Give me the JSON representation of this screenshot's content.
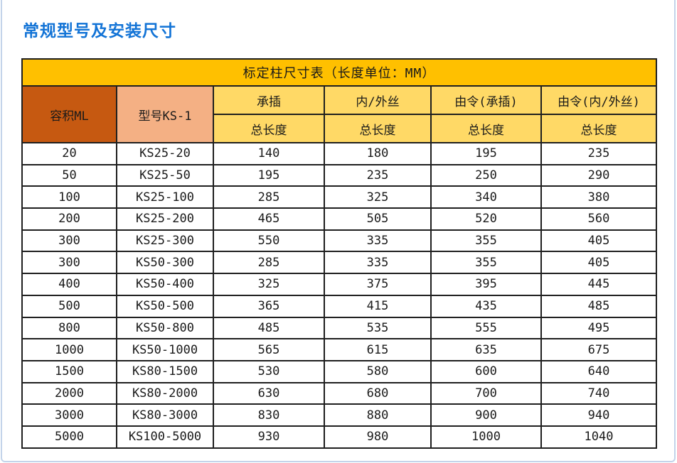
{
  "page": {
    "title": "常规型号及安装尺寸",
    "title_color": "#1273d6",
    "frame_color": "#c3d4ea"
  },
  "table": {
    "caption": "标定柱尺寸表（长度单位：MM）",
    "colors": {
      "caption_bg": "#ffc000",
      "volume_header_bg": "#c65911",
      "model_header_bg": "#f4b084",
      "group_header_bg": "#ffd966",
      "border": "#1f1f1f"
    },
    "header": {
      "volume": "容积ML",
      "model": "型号KS-1",
      "groups": [
        "承插",
        "内/外丝",
        "由令(承插)",
        "由令(内/外丝)"
      ],
      "sub_label": "总长度"
    },
    "rows": [
      {
        "volume": "20",
        "model": "KS25-20",
        "values": [
          "140",
          "180",
          "195",
          "235"
        ]
      },
      {
        "volume": "50",
        "model": "KS25-50",
        "values": [
          "195",
          "235",
          "250",
          "290"
        ]
      },
      {
        "volume": "100",
        "model": "KS25-100",
        "values": [
          "285",
          "325",
          "340",
          "380"
        ]
      },
      {
        "volume": "200",
        "model": "KS25-200",
        "values": [
          "465",
          "505",
          "520",
          "560"
        ]
      },
      {
        "volume": "300",
        "model": "KS25-300",
        "values": [
          "550",
          "335",
          "355",
          "405"
        ]
      },
      {
        "volume": "300",
        "model": "KS50-300",
        "values": [
          "285",
          "335",
          "355",
          "405"
        ]
      },
      {
        "volume": "400",
        "model": "KS50-400",
        "values": [
          "325",
          "375",
          "395",
          "445"
        ]
      },
      {
        "volume": "500",
        "model": "KS50-500",
        "values": [
          "365",
          "415",
          "435",
          "485"
        ]
      },
      {
        "volume": "800",
        "model": "KS50-800",
        "values": [
          "485",
          "535",
          "555",
          "495"
        ]
      },
      {
        "volume": "1000",
        "model": "KS50-1000",
        "values": [
          "565",
          "615",
          "635",
          "675"
        ]
      },
      {
        "volume": "1500",
        "model": "KS80-1500",
        "values": [
          "530",
          "580",
          "600",
          "640"
        ]
      },
      {
        "volume": "2000",
        "model": "KS80-2000",
        "values": [
          "630",
          "680",
          "700",
          "740"
        ]
      },
      {
        "volume": "3000",
        "model": "KS80-3000",
        "values": [
          "830",
          "880",
          "900",
          "940"
        ]
      },
      {
        "volume": "5000",
        "model": "KS100-5000",
        "values": [
          "930",
          "980",
          "1000",
          "1040"
        ]
      }
    ]
  }
}
